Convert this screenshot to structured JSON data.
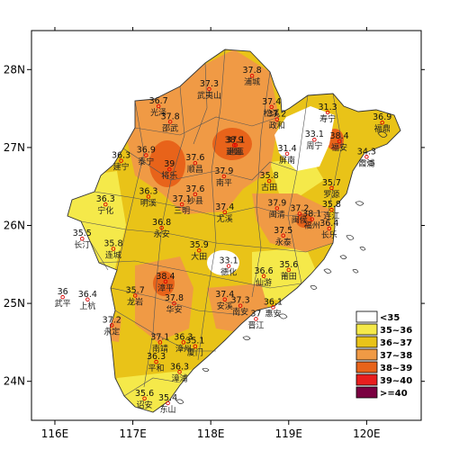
{
  "map": {
    "x_ticks": [
      {
        "label": "116E",
        "lon": 116
      },
      {
        "label": "117E",
        "lon": 117
      },
      {
        "label": "118E",
        "lon": 118
      },
      {
        "label": "119E",
        "lon": 119
      },
      {
        "label": "120E",
        "lon": 120
      }
    ],
    "y_ticks": [
      {
        "label": "28N",
        "lat": 28
      },
      {
        "label": "27N",
        "lat": 27
      },
      {
        "label": "26N",
        "lat": 26
      },
      {
        "label": "25N",
        "lat": 25
      },
      {
        "label": "24N",
        "lat": 24
      }
    ],
    "lon_range": [
      115.7,
      120.7
    ],
    "lat_range": [
      23.5,
      28.5
    ],
    "legend": [
      {
        "label": "<35",
        "color": "#ffffff"
      },
      {
        "label": "35~36",
        "color": "#f5e94a"
      },
      {
        "label": "36~37",
        "color": "#e9c318"
      },
      {
        "label": "37~38",
        "color": "#f09a45"
      },
      {
        "label": "38~39",
        "color": "#e8631a"
      },
      {
        "label": "39~40",
        "color": "#e81e1e"
      },
      {
        "label": ">=40",
        "color": "#7a0040"
      }
    ],
    "stations": [
      {
        "value": "37.3",
        "name": "武夷山",
        "lon": 117.98,
        "lat": 27.75
      },
      {
        "value": "37.8",
        "name": "浦城",
        "lon": 118.53,
        "lat": 27.92
      },
      {
        "value": "36.7",
        "name": "光泽",
        "lon": 117.33,
        "lat": 27.53
      },
      {
        "value": "37.8",
        "name": "邵武",
        "lon": 117.48,
        "lat": 27.33
      },
      {
        "value": "37.1",
        "name": "建瓯",
        "lon": 118.32,
        "lat": 27.03
      },
      {
        "value": "37.4",
        "name": "松溪",
        "lon": 118.78,
        "lat": 27.52
      },
      {
        "value": "37.2",
        "name": "政和",
        "lon": 118.85,
        "lat": 27.36
      },
      {
        "value": "31.3",
        "name": "寿宁",
        "lon": 119.5,
        "lat": 27.45
      },
      {
        "value": "33.1",
        "name": "周宁",
        "lon": 119.33,
        "lat": 27.1
      },
      {
        "value": "36.9",
        "name": "福鼎",
        "lon": 120.2,
        "lat": 27.32
      },
      {
        "value": "38.9",
        "name": "建瓯",
        "lon": 118.3,
        "lat": 27.03
      },
      {
        "value": "31.4",
        "name": "屏南",
        "lon": 118.98,
        "lat": 26.92
      },
      {
        "value": "38.4",
        "name": "福安",
        "lon": 119.65,
        "lat": 27.08
      },
      {
        "value": "34.3",
        "name": "霞浦",
        "lon": 120.0,
        "lat": 26.88
      },
      {
        "value": "36.9",
        "name": "泰宁",
        "lon": 117.17,
        "lat": 26.9
      },
      {
        "value": "39",
        "name": "将乐",
        "lon": 117.47,
        "lat": 26.72
      },
      {
        "value": "37.6",
        "name": "顺昌",
        "lon": 117.8,
        "lat": 26.8
      },
      {
        "value": "37.9",
        "name": "南平",
        "lon": 118.17,
        "lat": 26.63
      },
      {
        "value": "36.3",
        "name": "建宁",
        "lon": 116.85,
        "lat": 26.83
      },
      {
        "value": "37.6",
        "name": "沙县",
        "lon": 117.8,
        "lat": 26.4
      },
      {
        "value": "35.8",
        "name": "古田",
        "lon": 118.75,
        "lat": 26.57
      },
      {
        "value": "35.7",
        "name": "罗源",
        "lon": 119.55,
        "lat": 26.48
      },
      {
        "value": "35.8",
        "name": "连江",
        "lon": 119.55,
        "lat": 26.2
      },
      {
        "value": "36.3",
        "name": "明溪",
        "lon": 117.2,
        "lat": 26.37
      },
      {
        "value": "37.1",
        "name": "三明",
        "lon": 117.63,
        "lat": 26.27
      },
      {
        "value": "37.4",
        "name": "尤溪",
        "lon": 118.18,
        "lat": 26.17
      },
      {
        "value": "37.9",
        "name": "闽清",
        "lon": 118.85,
        "lat": 26.22
      },
      {
        "value": "37.2",
        "name": "闽侯",
        "lon": 119.14,
        "lat": 26.15
      },
      {
        "value": "38.1",
        "name": "福州",
        "lon": 119.3,
        "lat": 26.08
      },
      {
        "value": "36.4",
        "name": "长乐",
        "lon": 119.52,
        "lat": 25.96
      },
      {
        "value": "36.3",
        "name": "宁化",
        "lon": 116.65,
        "lat": 26.27
      },
      {
        "value": "36.8",
        "name": "永安",
        "lon": 117.37,
        "lat": 25.97
      },
      {
        "value": "37.5",
        "name": "永泰",
        "lon": 118.93,
        "lat": 25.87
      },
      {
        "value": "35.5",
        "name": "长汀",
        "lon": 116.35,
        "lat": 25.83
      },
      {
        "value": "35.8",
        "name": "连城",
        "lon": 116.75,
        "lat": 25.7
      },
      {
        "value": "35.9",
        "name": "大田",
        "lon": 117.85,
        "lat": 25.68
      },
      {
        "value": "33.1",
        "name": "德化",
        "lon": 118.23,
        "lat": 25.48
      },
      {
        "value": "36.6",
        "name": "仙游",
        "lon": 118.68,
        "lat": 25.35
      },
      {
        "value": "35.6",
        "name": "莆田",
        "lon": 119.0,
        "lat": 25.43
      },
      {
        "value": "38.4",
        "name": "漳平",
        "lon": 117.42,
        "lat": 25.28
      },
      {
        "value": "36",
        "name": "武平",
        "lon": 116.1,
        "lat": 25.08
      },
      {
        "value": "36.4",
        "name": "上杭",
        "lon": 116.42,
        "lat": 25.05
      },
      {
        "value": "35.7",
        "name": "龙岩",
        "lon": 117.03,
        "lat": 25.1
      },
      {
        "value": "37.8",
        "name": "华安",
        "lon": 117.53,
        "lat": 25.0
      },
      {
        "value": "37.4",
        "name": "安溪",
        "lon": 118.18,
        "lat": 25.05
      },
      {
        "value": "37.3",
        "name": "南安",
        "lon": 118.38,
        "lat": 24.97
      },
      {
        "value": "37",
        "name": "晋江",
        "lon": 118.58,
        "lat": 24.8
      },
      {
        "value": "36.1",
        "name": "惠安",
        "lon": 118.8,
        "lat": 24.95
      },
      {
        "value": "37.2",
        "name": "永定",
        "lon": 116.73,
        "lat": 24.72
      },
      {
        "value": "37.1",
        "name": "南靖",
        "lon": 117.35,
        "lat": 24.5
      },
      {
        "value": "36.3",
        "name": "漳州",
        "lon": 117.65,
        "lat": 24.5
      },
      {
        "value": "35.1",
        "name": "厦门",
        "lon": 117.8,
        "lat": 24.45
      },
      {
        "value": "36.3",
        "name": "平和",
        "lon": 117.3,
        "lat": 24.25
      },
      {
        "value": "36.3",
        "name": "漳浦",
        "lon": 117.6,
        "lat": 24.12
      },
      {
        "value": "35.6",
        "name": "诏安",
        "lon": 117.15,
        "lat": 23.78
      },
      {
        "value": "35.4",
        "name": "东山",
        "lon": 117.45,
        "lat": 23.72
      }
    ]
  }
}
